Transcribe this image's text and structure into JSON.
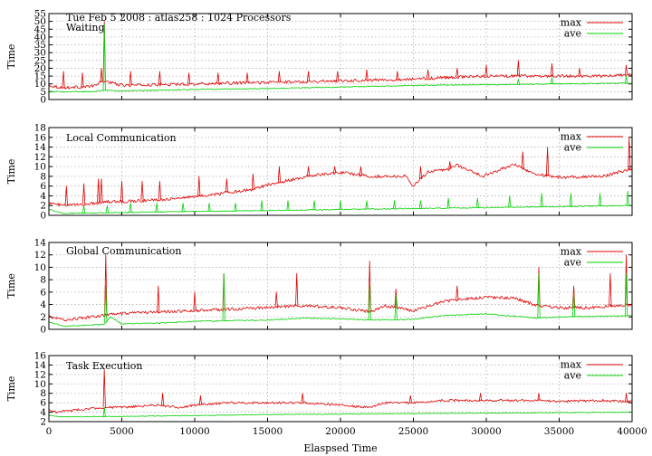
{
  "chart_data": {
    "type": "line",
    "header_text": "Tue Feb 5 2008 : atlas258 : 1024 Processors",
    "xlabel": "Elaspsed Time",
    "xlim": [
      0,
      40000
    ],
    "xticks": [
      0,
      5000,
      10000,
      15000,
      20000,
      25000,
      30000,
      35000,
      40000
    ],
    "colors": {
      "max": "#e00000",
      "ave": "#00d000"
    },
    "grid": true,
    "legend_position": "top-right",
    "panels": [
      {
        "title": "Waiting",
        "ylabel": "Time",
        "ylim": [
          0,
          55
        ],
        "yticks": [
          0,
          5,
          10,
          15,
          20,
          25,
          30,
          35,
          40,
          45,
          50,
          55
        ],
        "series": [
          {
            "name": "max",
            "x": [
              0,
              1000,
              3000,
              3800,
              5000,
              10000,
              15000,
              20000,
              25000,
              27000,
              30000,
              35000,
              38000,
              40000
            ],
            "y": [
              9,
              7.5,
              8.5,
              12,
              9,
              10,
              11,
              12,
              13,
              14,
              15,
              15,
              15,
              16
            ]
          },
          {
            "name": "ave",
            "x": [
              0,
              1000,
              3000,
              3800,
              5000,
              10000,
              15000,
              20000,
              25000,
              30000,
              35000,
              40000
            ],
            "y": [
              5,
              5,
              5,
              6,
              5.5,
              6.5,
              7,
              8,
              9,
              9.5,
              10,
              10.5
            ]
          }
        ],
        "spikes": [
          {
            "name": "max",
            "x": [
              1000,
              2300,
              3600,
              3800,
              5600,
              7600,
              9600,
              11600,
              13600,
              15800,
              17800,
              19800,
              21800,
              23900,
              26000,
              28000,
              30000,
              32200,
              34500,
              36400,
              39600
            ],
            "y": [
              18,
              17,
              20,
              50,
              18,
              18,
              17,
              17,
              17,
              18,
              18,
              18,
              19,
              18,
              19,
              20,
              22,
              25,
              23,
              20,
              22
            ]
          },
          {
            "name": "ave",
            "x": [
              3800,
              32200,
              34500,
              39600
            ],
            "y": [
              48,
              13,
              14,
              15
            ]
          }
        ]
      },
      {
        "title": "Local Communication",
        "ylabel": "Time",
        "ylim": [
          0,
          18
        ],
        "yticks": [
          0,
          2,
          4,
          6,
          8,
          10,
          12,
          14,
          16,
          18
        ],
        "series": [
          {
            "name": "max",
            "x": [
              0,
              1000,
              2500,
              3900,
              5000,
              7500,
              10000,
              12000,
              14000,
              15000,
              17500,
              18000,
              20000,
              22000,
              24500,
              25000,
              26000,
              27500,
              28000,
              29800,
              30000,
              32000,
              33200,
              35000,
              38000,
              40000
            ],
            "y": [
              2.5,
              2,
              2.3,
              2.8,
              2.8,
              3.2,
              3.8,
              4.6,
              5.3,
              6.3,
              7.8,
              8.2,
              8.8,
              8,
              8,
              6,
              9,
              9.5,
              10.3,
              8,
              8.3,
              10.5,
              8.5,
              7.8,
              8,
              9.5
            ]
          },
          {
            "name": "ave",
            "x": [
              0,
              1000,
              5000,
              10000,
              15000,
              20000,
              25000,
              30000,
              35000,
              40000
            ],
            "y": [
              1.2,
              0.4,
              0.6,
              0.8,
              1,
              1.2,
              1.4,
              1.6,
              1.8,
              2
            ]
          }
        ],
        "spikes": [
          {
            "name": "max",
            "x": [
              1200,
              2400,
              3400,
              3600,
              5000,
              6400,
              7600,
              10300,
              12200,
              14000,
              15800,
              17800,
              19600,
              21400,
              25500,
              27500,
              32500,
              34200,
              39800
            ],
            "y": [
              6,
              6.5,
              7.5,
              7.5,
              7,
              7,
              7,
              8,
              7.5,
              8.5,
              10,
              10,
              10,
              10,
              10,
              11,
              13,
              14,
              16
            ]
          },
          {
            "name": "ave",
            "x": [
              2400,
              4000,
              5600,
              7400,
              9200,
              11000,
              12800,
              14600,
              16400,
              18200,
              20000,
              21800,
              23700,
              25500,
              27400,
              29400,
              31600,
              33800,
              35800,
              37800,
              39700
            ],
            "y": [
              2,
              2,
              2.5,
              2.5,
              2.5,
              2.5,
              2.5,
              3,
              3,
              3,
              3,
              3,
              3,
              3,
              3.5,
              3.5,
              4,
              4.5,
              4.5,
              4.5,
              5
            ]
          }
        ]
      },
      {
        "title": "Global Communication",
        "ylabel": "Time",
        "ylim": [
          0,
          14
        ],
        "yticks": [
          0,
          2,
          4,
          6,
          8,
          10,
          12,
          14
        ],
        "series": [
          {
            "name": "max",
            "x": [
              0,
              1000,
              3000,
              3800,
              4200,
              5000,
              7500,
              10000,
              12000,
              15000,
              17000,
              20000,
              22000,
              23000,
              25000,
              27000,
              30000,
              32000,
              33500,
              35000,
              37000,
              40000
            ],
            "y": [
              2,
              1.5,
              2,
              2.3,
              2.4,
              2.5,
              2.8,
              3,
              3.2,
              3.5,
              3.8,
              3.5,
              2.8,
              3.8,
              3,
              4.5,
              5.2,
              5,
              3.8,
              3.5,
              3.5,
              4
            ]
          },
          {
            "name": "ave",
            "x": [
              0,
              1000,
              3800,
              4200,
              5000,
              7500,
              10000,
              15000,
              17500,
              20000,
              22000,
              25000,
              27000,
              30000,
              33500,
              35000,
              40000
            ],
            "y": [
              1.2,
              0.5,
              0.8,
              2,
              0.9,
              1,
              1.3,
              1.5,
              1.8,
              1.7,
              1.5,
              1.6,
              2.2,
              2.5,
              1.8,
              2,
              2.2
            ]
          }
        ],
        "spikes": [
          {
            "name": "max",
            "x": [
              3900,
              7500,
              10000,
              12000,
              15600,
              17000,
              22000,
              23800,
              28000,
              33600,
              36000,
              38500,
              39600
            ],
            "y": [
              12,
              7,
              6,
              9,
              6,
              9,
              11,
              6.5,
              7,
              10,
              7,
              9,
              12
            ]
          },
          {
            "name": "ave",
            "x": [
              3900,
              12000,
              22000,
              23800,
              33600,
              36000,
              39600
            ],
            "y": [
              7,
              9,
              7,
              5.5,
              9,
              6,
              9
            ]
          }
        ]
      },
      {
        "title": "Task Execution",
        "ylabel": "Time",
        "ylim": [
          2,
          16
        ],
        "yticks": [
          2,
          4,
          6,
          8,
          10,
          12,
          14,
          16
        ],
        "series": [
          {
            "name": "max",
            "x": [
              0,
              500,
              1000,
              3000,
              3800,
              5000,
              7500,
              9000,
              10000,
              12500,
              15000,
              17500,
              20000,
              22000,
              23000,
              25000,
              27000,
              30000,
              33000,
              35000,
              38000,
              40000
            ],
            "y": [
              4.5,
              4,
              4.2,
              4.8,
              5,
              5,
              5.5,
              5,
              5.5,
              6,
              6,
              6,
              5.5,
              5,
              6,
              6,
              6.5,
              6.5,
              6.5,
              6.3,
              6.5,
              6.2
            ]
          },
          {
            "name": "ave",
            "x": [
              0,
              1000,
              5000,
              10000,
              15000,
              20000,
              25000,
              30000,
              35000,
              40000
            ],
            "y": [
              3.3,
              3,
              3.1,
              3.3,
              3.5,
              3.6,
              3.7,
              3.8,
              3.9,
              4
            ]
          }
        ],
        "spikes": [
          {
            "name": "max",
            "x": [
              3800,
              7800,
              10400,
              17400,
              24800,
              29600,
              33600,
              39600
            ],
            "y": [
              13,
              8,
              7.5,
              8,
              7.5,
              8,
              8,
              8
            ]
          },
          {
            "name": "ave",
            "x": [
              3800
            ],
            "y": [
              5
            ]
          }
        ]
      }
    ]
  }
}
